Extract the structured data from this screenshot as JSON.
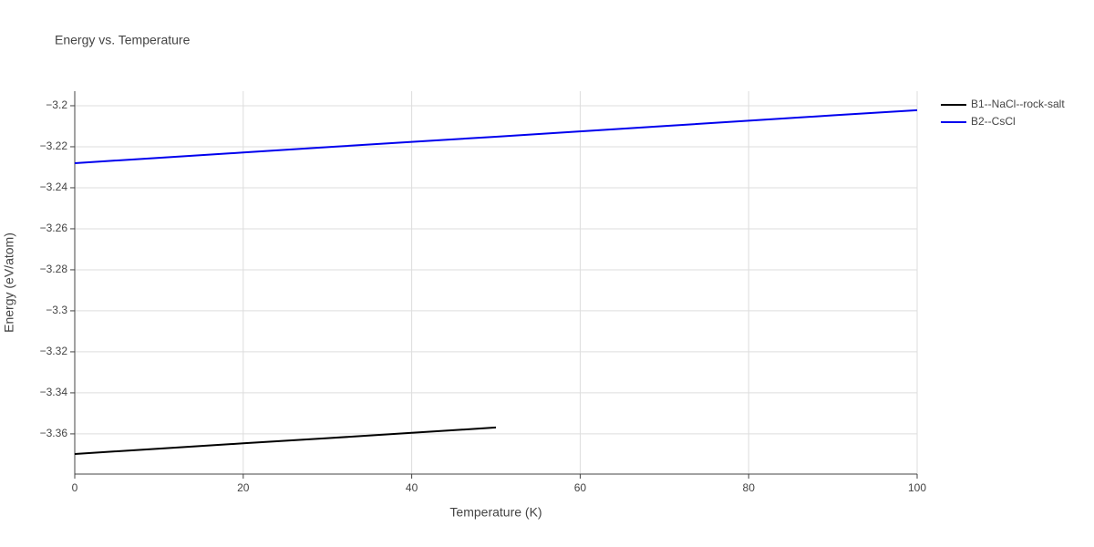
{
  "chart_data": {
    "type": "line",
    "title": "Energy vs. Temperature",
    "x_label": "Temperature (K)",
    "y_label": "Energy (eV/atom)",
    "x": [
      0,
      10,
      20,
      30,
      40,
      50,
      60,
      70,
      80,
      90,
      100
    ],
    "series": [
      {
        "name": "B1--NaCl--rock-salt",
        "color": "#000000",
        "values": [
          -3.3698,
          -3.3672,
          -3.3646,
          -3.3621,
          -3.3595,
          -3.3569,
          null,
          null,
          null,
          null,
          null
        ]
      },
      {
        "name": "B2--CsCl",
        "color": "#0000ee",
        "values": [
          -3.228,
          -3.2254,
          -3.2228,
          -3.2202,
          -3.2176,
          -3.2151,
          -3.2125,
          -3.2099,
          -3.2073,
          -3.2047,
          -3.2022
        ]
      }
    ],
    "xlim": [
      0,
      100
    ],
    "xticks": [
      0,
      20,
      40,
      60,
      80,
      100
    ],
    "ylim": [
      -3.3796,
      -3.1929
    ],
    "yticks": [
      {
        "value": -3.36,
        "label": "−3.36"
      },
      {
        "value": -3.34,
        "label": "−3.34"
      },
      {
        "value": -3.32,
        "label": "−3.32"
      },
      {
        "value": -3.3,
        "label": "−3.3"
      },
      {
        "value": -3.28,
        "label": "−3.28"
      },
      {
        "value": -3.26,
        "label": "−3.26"
      },
      {
        "value": -3.24,
        "label": "−3.24"
      },
      {
        "value": -3.22,
        "label": "−3.22"
      },
      {
        "value": -3.2,
        "label": "−3.2"
      }
    ],
    "grid": true,
    "legend": "top-right"
  }
}
